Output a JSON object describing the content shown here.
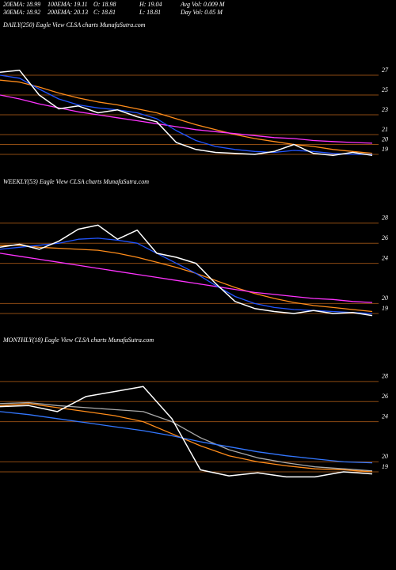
{
  "header": {
    "rows": [
      [
        "20EMA: 18.99",
        "100EMA: 19.11",
        "O: 18.98",
        "H: 19.04",
        "Avg Vol: 0.009 M"
      ],
      [
        "30EMA: 18.92",
        "200EMA: 20.13",
        "C: 18.81",
        "L: 18.81",
        "Day Vol: 0.05 M"
      ]
    ]
  },
  "chart_data": [
    {
      "type": "line",
      "title": "DAILY(250) Eagle   View  CLSA charts MunafaSutra.com",
      "ylim": [
        17.8,
        31.4
      ],
      "yticks": [
        27,
        25,
        23,
        21,
        20,
        19
      ],
      "grid": true,
      "grid_color": "#8b4a12",
      "series": [
        {
          "color": "#ff8c1a",
          "values": [
            26.5,
            26.3,
            25.8,
            25.2,
            24.7,
            24.3,
            24.0,
            23.6,
            23.2,
            22.6,
            22.0,
            21.5,
            21.0,
            20.6,
            20.3,
            20.0,
            19.8,
            19.5,
            19.3,
            19.11
          ]
        },
        {
          "color": "#ff33ff",
          "values": [
            25.0,
            24.6,
            24.1,
            23.7,
            23.3,
            23.0,
            22.7,
            22.4,
            22.1,
            21.8,
            21.5,
            21.3,
            21.1,
            20.9,
            20.7,
            20.6,
            20.4,
            20.3,
            20.2,
            20.13
          ]
        },
        {
          "color": "#2255ff",
          "values": [
            27.0,
            26.7,
            25.6,
            24.6,
            24.0,
            23.7,
            23.5,
            23.2,
            22.6,
            21.4,
            20.4,
            19.8,
            19.5,
            19.3,
            19.2,
            19.4,
            19.3,
            19.1,
            19.0,
            19.0
          ]
        },
        {
          "color": "#ffffff",
          "values": [
            27.3,
            27.5,
            25.0,
            23.6,
            23.9,
            23.2,
            23.5,
            22.8,
            22.3,
            20.2,
            19.5,
            19.2,
            19.1,
            19.0,
            19.3,
            20.0,
            19.1,
            18.9,
            19.2,
            18.9
          ]
        }
      ]
    },
    {
      "type": "line",
      "title": "WEEKLY(53) Eagle  View  CLSA charts MunafaSutra.com",
      "ylim": [
        17.9,
        31.3
      ],
      "yticks": [
        28,
        26,
        24,
        20,
        19
      ],
      "grid": true,
      "grid_color": "#8b4a12",
      "series": [
        {
          "color": "#ff8c1a",
          "values": [
            25.8,
            25.8,
            25.6,
            25.5,
            25.4,
            25.3,
            25.0,
            24.6,
            24.1,
            23.6,
            23.0,
            22.3,
            21.6,
            21.0,
            20.5,
            20.1,
            19.8,
            19.6,
            19.4,
            19.2
          ]
        },
        {
          "color": "#ff33ff",
          "values": [
            25.0,
            24.7,
            24.4,
            24.1,
            23.8,
            23.5,
            23.2,
            22.9,
            22.6,
            22.3,
            22.0,
            21.7,
            21.4,
            21.1,
            20.9,
            20.7,
            20.5,
            20.4,
            20.2,
            20.1
          ]
        },
        {
          "color": "#2255ff",
          "values": [
            25.4,
            25.6,
            25.8,
            26.0,
            26.4,
            26.5,
            26.3,
            26.0,
            25.0,
            24.0,
            23.0,
            21.8,
            20.7,
            20.0,
            19.6,
            19.4,
            19.3,
            19.2,
            19.1,
            19.0
          ]
        },
        {
          "color": "#ffffff",
          "values": [
            25.6,
            25.9,
            25.4,
            26.2,
            27.4,
            27.8,
            26.4,
            27.3,
            25.0,
            24.6,
            24.0,
            22.0,
            20.2,
            19.5,
            19.2,
            19.0,
            19.3,
            19.0,
            19.1,
            18.8
          ]
        }
      ]
    },
    {
      "type": "line",
      "title": "MONTHLY(18) Eagle  View  CLSA charts MunafaSutra.com",
      "ylim": [
        17.9,
        31.3
      ],
      "yticks": [
        28,
        26,
        24,
        20,
        19
      ],
      "grid": true,
      "grid_color": "#8b4a12",
      "series": [
        {
          "color": "#aaaaaa",
          "values": [
            25.8,
            25.9,
            25.6,
            25.4,
            25.2,
            25.0,
            24.0,
            22.4,
            21.2,
            20.4,
            19.9,
            19.5,
            19.3,
            19.1
          ]
        },
        {
          "color": "#ff8c1a",
          "values": [
            25.6,
            25.8,
            25.4,
            25.0,
            24.6,
            24.0,
            22.8,
            21.6,
            20.6,
            20.0,
            19.6,
            19.3,
            19.2,
            19.0
          ]
        },
        {
          "color": "#3377ff",
          "values": [
            25.0,
            24.7,
            24.3,
            23.9,
            23.5,
            23.1,
            22.6,
            22.0,
            21.5,
            21.0,
            20.6,
            20.3,
            20.0,
            19.9
          ]
        },
        {
          "color": "#ffffff",
          "values": [
            25.5,
            25.6,
            25.0,
            26.5,
            27.0,
            27.5,
            24.3,
            19.2,
            18.6,
            18.9,
            18.5,
            18.5,
            19.0,
            18.8
          ]
        }
      ]
    }
  ]
}
